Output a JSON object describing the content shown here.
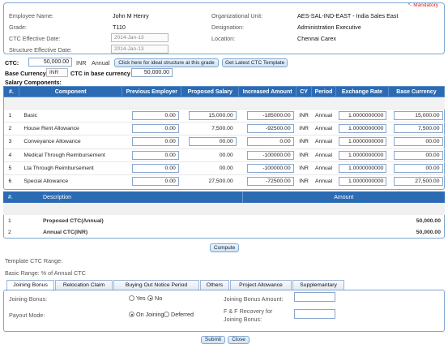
{
  "mandatory_note": "*- Mandatory",
  "employee": {
    "name_label": "Employee Name:",
    "name_value": "John M Henry",
    "grade_label": "Grade:",
    "grade_value": "T110",
    "ctc_eff_label": "CTC Effective Date:",
    "ctc_eff_value": "2014-Jan-13",
    "struct_eff_label": "Structure Effective Date:",
    "struct_eff_value": "2014-Jan-13",
    "org_label": "Organizational Unit:",
    "org_value": "AES-SAL-IND-EAST - India Sales East",
    "desig_label": "Designation:",
    "desig_value": "Administration Executive",
    "loc_label": "Location:",
    "loc_value": "Chennai Carex"
  },
  "ctc": {
    "label": "CTC:",
    "value": "50,000.00",
    "currency": "INR",
    "period": "Annual",
    "ideal_button": "Click here for ideal structure at this grade",
    "template_button": "Get Latest CTC Template",
    "base_currency_label": "Base Currency",
    "base_currency_value": "INR",
    "ctc_base_label": "CTC in base currency",
    "ctc_base_value": "50,000.00"
  },
  "salary_components_title": "Salary Components:",
  "grid1": {
    "headers": [
      "#.",
      "Component",
      "Previous Employer",
      "Proposed Salary",
      "Increased Amount",
      "CY",
      "Period",
      "Exchange Rate",
      "Base Currency"
    ],
    "rows": [
      {
        "no": "1",
        "component": "Basic",
        "prev": "0.00",
        "proposed": "15,000.00",
        "increased": "-185000.00",
        "cy": "INR",
        "period": "Annual",
        "rate": "1.0000000000",
        "base": "15,000.00"
      },
      {
        "no": "2",
        "component": "House Rent Allowance",
        "prev": "0.00",
        "proposed": "7,500.00",
        "increased": "-92500.00",
        "cy": "INR",
        "period": "Annual",
        "rate": "1.0000000000",
        "base": "7,500.00"
      },
      {
        "no": "3",
        "component": "Conveyance Allowance",
        "prev": "0.00",
        "proposed": "00.00",
        "increased": "0.00",
        "cy": "INR",
        "period": "Annual",
        "rate": "1.0000000000",
        "base": "00.00"
      },
      {
        "no": "4",
        "component": "Medical Through Reimbursement",
        "prev": "0.00",
        "proposed": "00.00",
        "increased": "-100000.00",
        "cy": "INR",
        "period": "Annual",
        "rate": "1.0000000000",
        "base": "00.00"
      },
      {
        "no": "5",
        "component": "Lta Through Reimbursement",
        "prev": "0.00",
        "proposed": "00.00",
        "increased": "-100000.00",
        "cy": "INR",
        "period": "Annual",
        "rate": "1.0000000000",
        "base": "00.00"
      },
      {
        "no": "6",
        "component": "Special Allowance",
        "prev": "0.00",
        "proposed": "27,500.00",
        "increased": "-72500.00",
        "cy": "INR",
        "period": "Annual",
        "rate": "1.0000000000",
        "base": "27,500.00"
      }
    ]
  },
  "grid2": {
    "headers": [
      "#.",
      "Description",
      "Amount"
    ],
    "rows": [
      {
        "no": "1",
        "description": "Proposed CTC(Annual)",
        "amount": "50,000.00"
      },
      {
        "no": "2",
        "description": "Annual CTC(INR)",
        "amount": "50,000.00"
      }
    ]
  },
  "compute_button": "Compute",
  "template_ctc_range": "Template CTC Range:",
  "basic_range": "Basic Range: % of Annual CTC",
  "tabs": [
    "Joining Bonus",
    "Relocation Claim",
    "Buying Out Notice Period",
    "Others",
    "Project Allowance",
    "Supplemantary"
  ],
  "joining": {
    "bonus_label": "Joining Bonus:",
    "yes": "Yes",
    "no": "No",
    "payout_label": "Payout Mode:",
    "on_joining": "On Joining",
    "deferred": "Deferred",
    "amount_label": "Joining Bonus Amount:",
    "recovery_label": "F & F Recovery for Joining Bonus:"
  },
  "submit_button": "Submit",
  "close_button": "Close"
}
